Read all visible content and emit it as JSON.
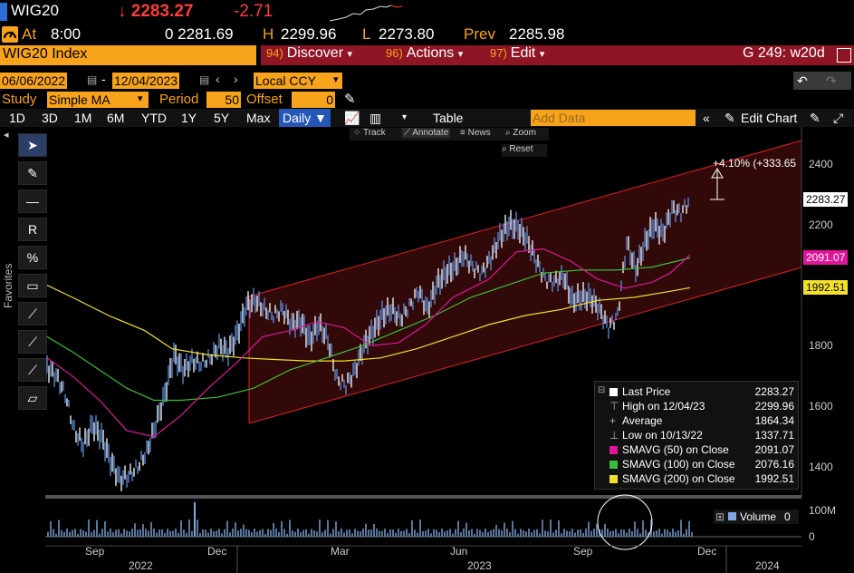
{
  "header": {
    "ticker": "WIG20",
    "last": "↓ 2283.27",
    "change": "-2.71",
    "at_label": "At",
    "at_time": "8:00",
    "open": "0 2281.69",
    "high_label": "H",
    "high": "2299.96",
    "low_label": "L",
    "low": "2273.80",
    "prev_label": "Prev",
    "prev": "2285.98"
  },
  "menubar": {
    "index_name": "WIG20 Index",
    "discover_num": "94)",
    "discover": "Discover",
    "actions_num": "96)",
    "actions": "Actions",
    "edit_num": "97)",
    "edit": "Edit",
    "right_label": "G 249: w20d"
  },
  "options": {
    "start_date": "06/06/2022",
    "end_date": "12/04/2023",
    "currency": "Local CCY",
    "study_label": "Study",
    "study": "Simple MA",
    "period_label": "Period",
    "period": "50",
    "offset_label": "Offset",
    "offset": "0"
  },
  "toolbar": {
    "ranges": [
      "1D",
      "3D",
      "1M",
      "6M",
      "YTD",
      "1Y",
      "5Y",
      "Max"
    ],
    "freq": "Daily ▼",
    "table": "Table",
    "add_data": "Add Data",
    "edit_chart": "Edit Chart"
  },
  "chart_controls": {
    "track": "Track",
    "annotate": "Annotate",
    "news": "News",
    "zoom": "Zoom",
    "reset": "Reset"
  },
  "sidebar": {
    "favorites": "Favorites"
  },
  "annotation": {
    "channel_text": "+4.10% (+333.65"
  },
  "axis": {
    "y_ticks": [
      "2400",
      "2200",
      "1800",
      "1600",
      "1400"
    ],
    "x_months": [
      "Sep",
      "Dec",
      "Mar",
      "Jun",
      "Sep",
      "Dec"
    ],
    "x_years": [
      "2022",
      "2023",
      "2024"
    ],
    "vol_ticks": [
      "100M",
      "0"
    ]
  },
  "price_tags": {
    "last": "2283.27",
    "sma50": "2091.07",
    "sma200": "1992.51"
  },
  "legend": {
    "rows": [
      {
        "label": "Last Price",
        "value": "2283.27",
        "color": "#ffffff"
      },
      {
        "label": "High on 12/04/23",
        "value": "2299.96",
        "color": "#888888"
      },
      {
        "label": "Average",
        "value": "1864.34",
        "color": "#888888"
      },
      {
        "label": "Low on 10/13/22",
        "value": "1337.71",
        "color": "#888888"
      },
      {
        "label": "SMAVG (50)  on Close",
        "value": "2091.07",
        "color": "#e0169a"
      },
      {
        "label": "SMAVG (100)  on Close",
        "value": "2076.16",
        "color": "#3bbd3b"
      },
      {
        "label": "SMAVG (200)  on Close",
        "value": "1992.51",
        "color": "#f2e02a"
      }
    ]
  },
  "volume": {
    "label": "Volume",
    "value": "0"
  },
  "colors": {
    "accent": "#f7a31c",
    "menubar": "#8f1525",
    "price_series": "#5a8fe0",
    "channel": "#e02020"
  }
}
